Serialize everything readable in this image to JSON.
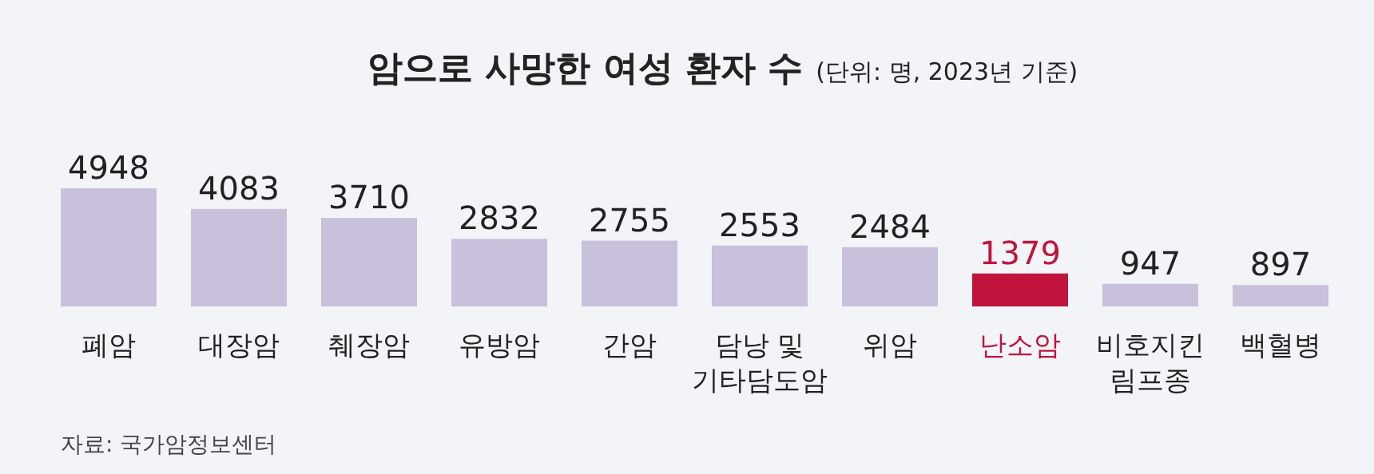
{
  "chart_data": {
    "type": "bar",
    "title": "암으로 사망한 여성 환자 수",
    "subtitle": "(단위: 명, 2023년 기준)",
    "categories": [
      "폐암",
      "대장암",
      "췌장암",
      "유방암",
      "간암",
      "담낭 및 기타담도암",
      "위암",
      "난소암",
      "비호지킨 림프종",
      "백혈병"
    ],
    "values": [
      4948,
      4083,
      3710,
      2832,
      2755,
      2553,
      2484,
      1379,
      947,
      897
    ],
    "colors": [
      "#c9c0dc",
      "#c9c0dc",
      "#c9c0dc",
      "#c9c0dc",
      "#c9c0dc",
      "#c9c0dc",
      "#c9c0dc",
      "#c0143c",
      "#c9c0dc",
      "#c9c0dc"
    ],
    "data_labels": true,
    "annotations": [
      "자료: 국가암정보센터"
    ]
  }
}
